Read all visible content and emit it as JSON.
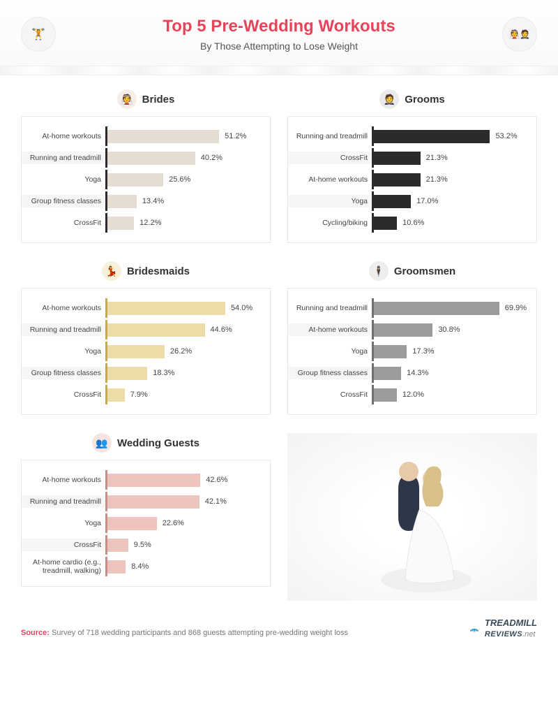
{
  "header": {
    "title": "Top 5 Pre-Wedding Workouts",
    "title_color": "#e6445a",
    "subtitle": "By Those Attempting to Lose Weight",
    "left_icon": "🏋",
    "right_icon": "👰🤵"
  },
  "charts": [
    {
      "id": "brides",
      "title": "Brides",
      "icon": "👰",
      "icon_bg": "#f5ede6",
      "axis_color": "#2b2b2b",
      "bar_color": "#e6ddd2",
      "max": 70,
      "rows": [
        {
          "label": "At-home workouts",
          "value": 51.2
        },
        {
          "label": "Running and treadmill",
          "value": 40.2
        },
        {
          "label": "Yoga",
          "value": 25.6
        },
        {
          "label": "Group fitness classes",
          "value": 13.4
        },
        {
          "label": "CrossFit",
          "value": 12.2
        }
      ]
    },
    {
      "id": "grooms",
      "title": "Grooms",
      "icon": "🤵",
      "icon_bg": "#eaeaea",
      "axis_color": "#2b2b2b",
      "bar_color": "#2b2b2b",
      "max": 70,
      "rows": [
        {
          "label": "Running and treadmill",
          "value": 53.2
        },
        {
          "label": "CrossFit",
          "value": 21.3
        },
        {
          "label": "At-home workouts",
          "value": 21.3
        },
        {
          "label": "Yoga",
          "value": 17.0
        },
        {
          "label": "Cycling/biking",
          "value": 10.6
        }
      ]
    },
    {
      "id": "bridesmaids",
      "title": "Bridesmaids",
      "icon": "💃",
      "icon_bg": "#f7f0db",
      "axis_color": "#c8a84f",
      "bar_color": "#ecdca8",
      "max": 70,
      "rows": [
        {
          "label": "At-home workouts",
          "value": 54.0
        },
        {
          "label": "Running and treadmill",
          "value": 44.6
        },
        {
          "label": "Yoga",
          "value": 26.2
        },
        {
          "label": "Group fitness classes",
          "value": 18.3
        },
        {
          "label": "CrossFit",
          "value": 7.9
        }
      ]
    },
    {
      "id": "groomsmen",
      "title": "Groomsmen",
      "icon": "🕴",
      "icon_bg": "#ededed",
      "axis_color": "#6f6f6f",
      "bar_color": "#9c9c9c",
      "max": 80,
      "rows": [
        {
          "label": "Running and treadmill",
          "value": 69.9
        },
        {
          "label": "At-home workouts",
          "value": 30.8
        },
        {
          "label": "Yoga",
          "value": 17.3
        },
        {
          "label": "Group fitness classes",
          "value": 14.3
        },
        {
          "label": "CrossFit",
          "value": 12.0
        }
      ]
    },
    {
      "id": "guests",
      "title": "Wedding Guests",
      "icon": "👥",
      "icon_bg": "#f7e4e1",
      "axis_color": "#c98d86",
      "bar_color": "#edc4bd",
      "max": 70,
      "rows": [
        {
          "label": "At-home workouts",
          "value": 42.6
        },
        {
          "label": "Running and treadmill",
          "value": 42.1
        },
        {
          "label": "Yoga",
          "value": 22.6
        },
        {
          "label": "CrossFit",
          "value": 9.5
        },
        {
          "label": "At-home cardio (e.g., treadmill, walking)",
          "value": 8.4
        }
      ]
    }
  ],
  "photo_placeholder": "[photo: bride & groom]",
  "footer": {
    "source_label": "Source:",
    "source_label_color": "#e6445a",
    "source_text": "Survey of 718 wedding participants and 868 guests attempting pre-wedding weight loss",
    "brand_name": "TREADMILL",
    "brand_sub": "REVIEWS",
    "brand_tld": ".net",
    "brand_color": "#3a4a5a",
    "brand_accent_color": "#4aa0c8"
  }
}
